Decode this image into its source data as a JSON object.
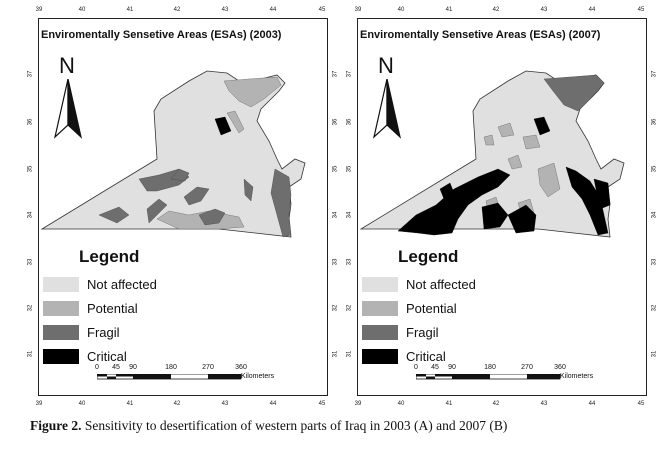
{
  "panels": [
    {
      "title": "Enviromentally Sensetive Areas (ESAs) (2003)",
      "north_label": "N",
      "lon_ticks": [
        "39",
        "40",
        "41",
        "42",
        "43",
        "44",
        "45"
      ],
      "lat_ticks": [
        "37",
        "36",
        "35",
        "34",
        "33",
        "32",
        "31"
      ]
    },
    {
      "title": "Enviromentally Sensetive Areas (ESAs) (2007)",
      "north_label": "N",
      "lon_ticks": [
        "39",
        "40",
        "41",
        "42",
        "43",
        "44",
        "45"
      ],
      "lat_ticks": [
        "37",
        "36",
        "35",
        "34",
        "33",
        "32",
        "31"
      ]
    }
  ],
  "legend": {
    "title": "Legend",
    "items": [
      {
        "label": "Not affected",
        "color": "#e0e0e0"
      },
      {
        "label": "Potential",
        "color": "#b3b3b3"
      },
      {
        "label": "Fragil",
        "color": "#6e6e6e"
      },
      {
        "label": "Critical",
        "color": "#000000"
      }
    ]
  },
  "scalebar": {
    "labels": [
      "0",
      "45",
      "90",
      "180",
      "270",
      "360"
    ],
    "unit": "Kilometers"
  },
  "caption": {
    "label": "Figure 2.",
    "text": " Sensitivity to desertification of western parts of Iraq in 2003 (A) and 2007 (B)"
  }
}
